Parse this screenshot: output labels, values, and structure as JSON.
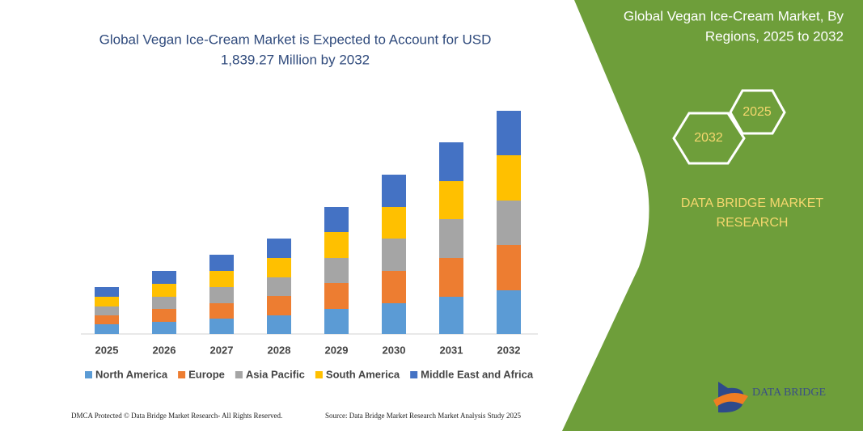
{
  "chart_data": {
    "type": "stacked-bar",
    "title": [
      "Global Vegan Ice-Cream Market is Expected to Account for USD",
      "1,839.27 Million by 2032"
    ],
    "categories": [
      "2025",
      "2026",
      "2027",
      "2028",
      "2029",
      "2030",
      "2031",
      "2032"
    ],
    "series": [
      {
        "name": "North America",
        "color": "#5b9bd5",
        "values": [
          12,
          15,
          19,
          23,
          31,
          38,
          46,
          54
        ]
      },
      {
        "name": "Europe",
        "color": "#ed7d31",
        "values": [
          11,
          16,
          19,
          24,
          32,
          40,
          48,
          56
        ]
      },
      {
        "name": "Asia Pacific",
        "color": "#a5a5a5",
        "values": [
          11,
          15,
          20,
          23,
          31,
          40,
          48,
          55
        ]
      },
      {
        "name": "South America",
        "color": "#ffc000",
        "values": [
          12,
          16,
          20,
          24,
          32,
          39,
          47,
          56
        ]
      },
      {
        "name": "Middle East and Africa",
        "color": "#4472c4",
        "values": [
          12,
          16,
          20,
          24,
          31,
          40,
          48,
          55
        ]
      }
    ]
  },
  "panel": {
    "title": [
      "Global Vegan Ice-Cream Market, By",
      "Regions, 2025 to 2032"
    ],
    "hexagons": [
      "2025",
      "2032"
    ],
    "brand": [
      "DATA BRIDGE MARKET",
      "RESEARCH"
    ]
  },
  "logo": "DATA BRIDGE",
  "footer": {
    "left": "DMCA Protected © Data Bridge Market Research-  All Rights Reserved.",
    "right": "Source: Data Bridge Market Research  Market Analysis Study 2025"
  }
}
